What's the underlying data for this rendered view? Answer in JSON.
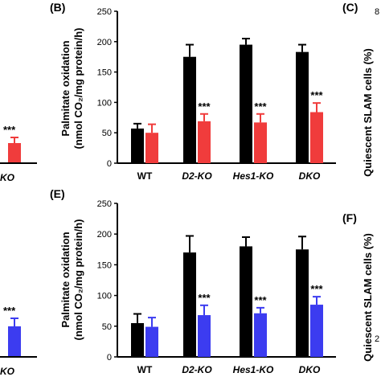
{
  "colors": {
    "control": "#000000",
    "red": "#f03c3c",
    "blue": "#3c3cf0",
    "axis": "#000000"
  },
  "left_partial": {
    "top": {
      "star": "***",
      "label": "KO",
      "color": "#f03c3c"
    },
    "bottom": {
      "star": "***",
      "label": "KO",
      "color": "#3c3cf0"
    }
  },
  "right_partial": {
    "top": {
      "panel": "(C)",
      "ylabel": "Quiescent SLAM cells (%)",
      "tick": "8"
    },
    "bottom": {
      "panel": "(F)",
      "ylabel": "Quiescent SLAM cells (%)",
      "tick": "2"
    }
  },
  "chart_data": [
    {
      "type": "bar",
      "panel": "(B)",
      "ylabel_line1": "Palmitate oxidation",
      "ylabel_line2": "(nmol CO₂/mg protein/h)",
      "ylim": [
        0,
        250
      ],
      "yticks": [
        "0",
        "50",
        "100",
        "150",
        "200",
        "250"
      ],
      "categories": [
        "WT",
        "D2-KO",
        "Hes1-KO",
        "DKO"
      ],
      "category_italic": [
        false,
        true,
        true,
        true
      ],
      "series": [
        {
          "values": [
            57,
            175,
            195,
            183
          ],
          "errors": [
            8,
            20,
            10,
            12
          ],
          "color": "#000000"
        },
        {
          "values": [
            50,
            69,
            67,
            84
          ],
          "errors": [
            14,
            12,
            14,
            15
          ],
          "color": "#f03c3c"
        }
      ],
      "significance": [
        "",
        "***",
        "***",
        "***"
      ]
    },
    {
      "type": "bar",
      "panel": "(E)",
      "ylabel_line1": "Palmitate oxidation",
      "ylabel_line2": "(nmol CO₂/mg protein/h)",
      "ylim": [
        0,
        250
      ],
      "yticks": [
        "0",
        "50",
        "100",
        "150",
        "200",
        "250"
      ],
      "categories": [
        "WT",
        "D2-KO",
        "Hes1-KO",
        "DKO"
      ],
      "category_italic": [
        false,
        true,
        true,
        true
      ],
      "series": [
        {
          "values": [
            55,
            170,
            180,
            175
          ],
          "errors": [
            15,
            27,
            15,
            21
          ],
          "color": "#000000"
        },
        {
          "values": [
            49,
            68,
            71,
            85
          ],
          "errors": [
            15,
            16,
            9,
            13
          ],
          "color": "#3c3cf0"
        }
      ],
      "significance": [
        "",
        "***",
        "***",
        "***"
      ]
    }
  ]
}
